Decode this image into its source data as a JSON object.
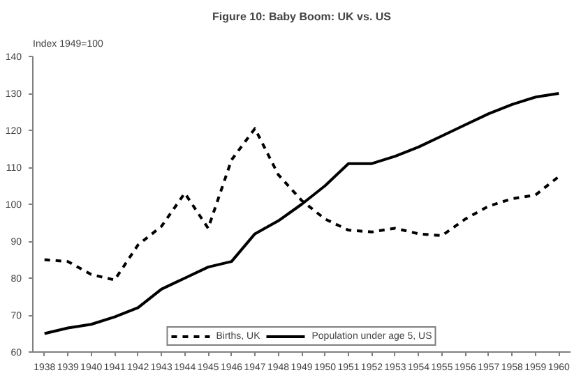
{
  "chart_data": {
    "type": "line",
    "title": "Figure 10: Baby Boom: UK vs. US",
    "ylabel": "Index 1949=100",
    "categories": [
      "1938",
      "1939",
      "1940",
      "1941",
      "1942",
      "1943",
      "1944",
      "1945",
      "1946",
      "1947",
      "1948",
      "1949",
      "1950",
      "1951",
      "1952",
      "1953",
      "1954",
      "1955",
      "1956",
      "1957",
      "1958",
      "1959",
      "1960"
    ],
    "series": [
      {
        "name": "Births, UK",
        "color": "#000000",
        "line_style": "dashed",
        "values": [
          85,
          84.5,
          81,
          79.5,
          89,
          94,
          103,
          93.5,
          112,
          120.5,
          108,
          101,
          96,
          93,
          92.5,
          93.5,
          92,
          91.5,
          96,
          99.5,
          101.5,
          102.5,
          107.5
        ]
      },
      {
        "name": "Population under age 5, US",
        "color": "#000000",
        "line_style": "solid",
        "values": [
          65,
          66.5,
          67.5,
          69.5,
          72,
          77,
          80,
          83,
          84.5,
          92,
          95.5,
          100,
          105,
          111,
          111,
          113,
          115.5,
          118.5,
          121.5,
          124.5,
          127,
          129,
          130
        ]
      }
    ],
    "ylim": [
      60,
      140
    ],
    "yticks": [
      60,
      70,
      80,
      90,
      100,
      110,
      120,
      130,
      140
    ],
    "grid": false,
    "legend": "bottom",
    "marker": "none"
  }
}
